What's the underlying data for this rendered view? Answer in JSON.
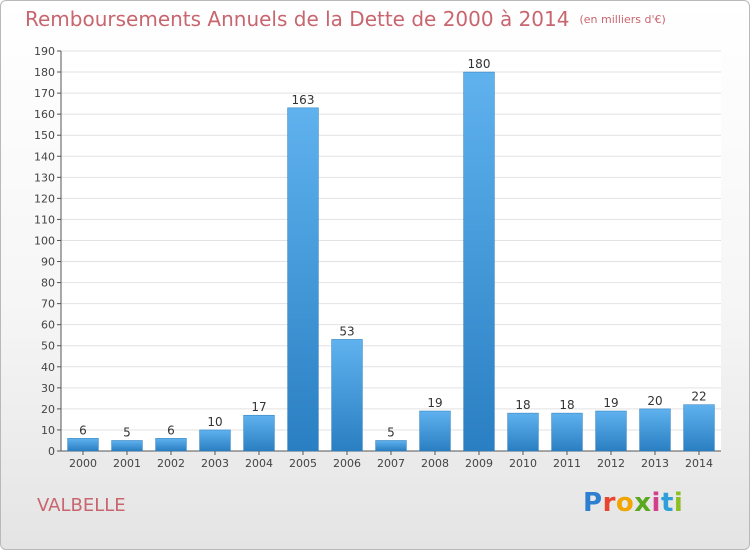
{
  "header": {
    "title": "Remboursements Annuels de la Dette de 2000 à 2014",
    "subtitle": "(en milliers d'€)"
  },
  "place_name": "VALBELLE",
  "logo": {
    "text": "Proxiti",
    "letters": [
      "P",
      "r",
      "o",
      "x",
      "i",
      "t",
      "i"
    ],
    "colors": [
      "#2e7fd0",
      "#e8452e",
      "#f0a500",
      "#5aa81e",
      "#d23f8a",
      "#2e9fd8",
      "#8cbf26"
    ]
  },
  "colors": {
    "title": "#c8656e",
    "bar_light": "#5fb2ee",
    "bar_dark": "#2a7fc2",
    "axis": "#555555",
    "grid": "#e2e2e2"
  },
  "chart_data": {
    "type": "bar",
    "title": "Remboursements Annuels de la Dette de 2000 à 2014",
    "subtitle": "(en milliers d'€)",
    "xlabel": "",
    "ylabel": "",
    "categories": [
      "2000",
      "2001",
      "2002",
      "2003",
      "2004",
      "2005",
      "2006",
      "2007",
      "2008",
      "2009",
      "2010",
      "2011",
      "2012",
      "2013",
      "2014"
    ],
    "values": [
      6,
      5,
      6,
      10,
      17,
      163,
      53,
      5,
      19,
      180,
      18,
      18,
      19,
      20,
      22
    ],
    "ylim": [
      0,
      190
    ],
    "yticks": [
      0,
      10,
      20,
      30,
      40,
      50,
      60,
      70,
      80,
      90,
      100,
      110,
      120,
      130,
      140,
      150,
      160,
      170,
      180,
      190
    ],
    "grid": true,
    "data_labels": true
  }
}
